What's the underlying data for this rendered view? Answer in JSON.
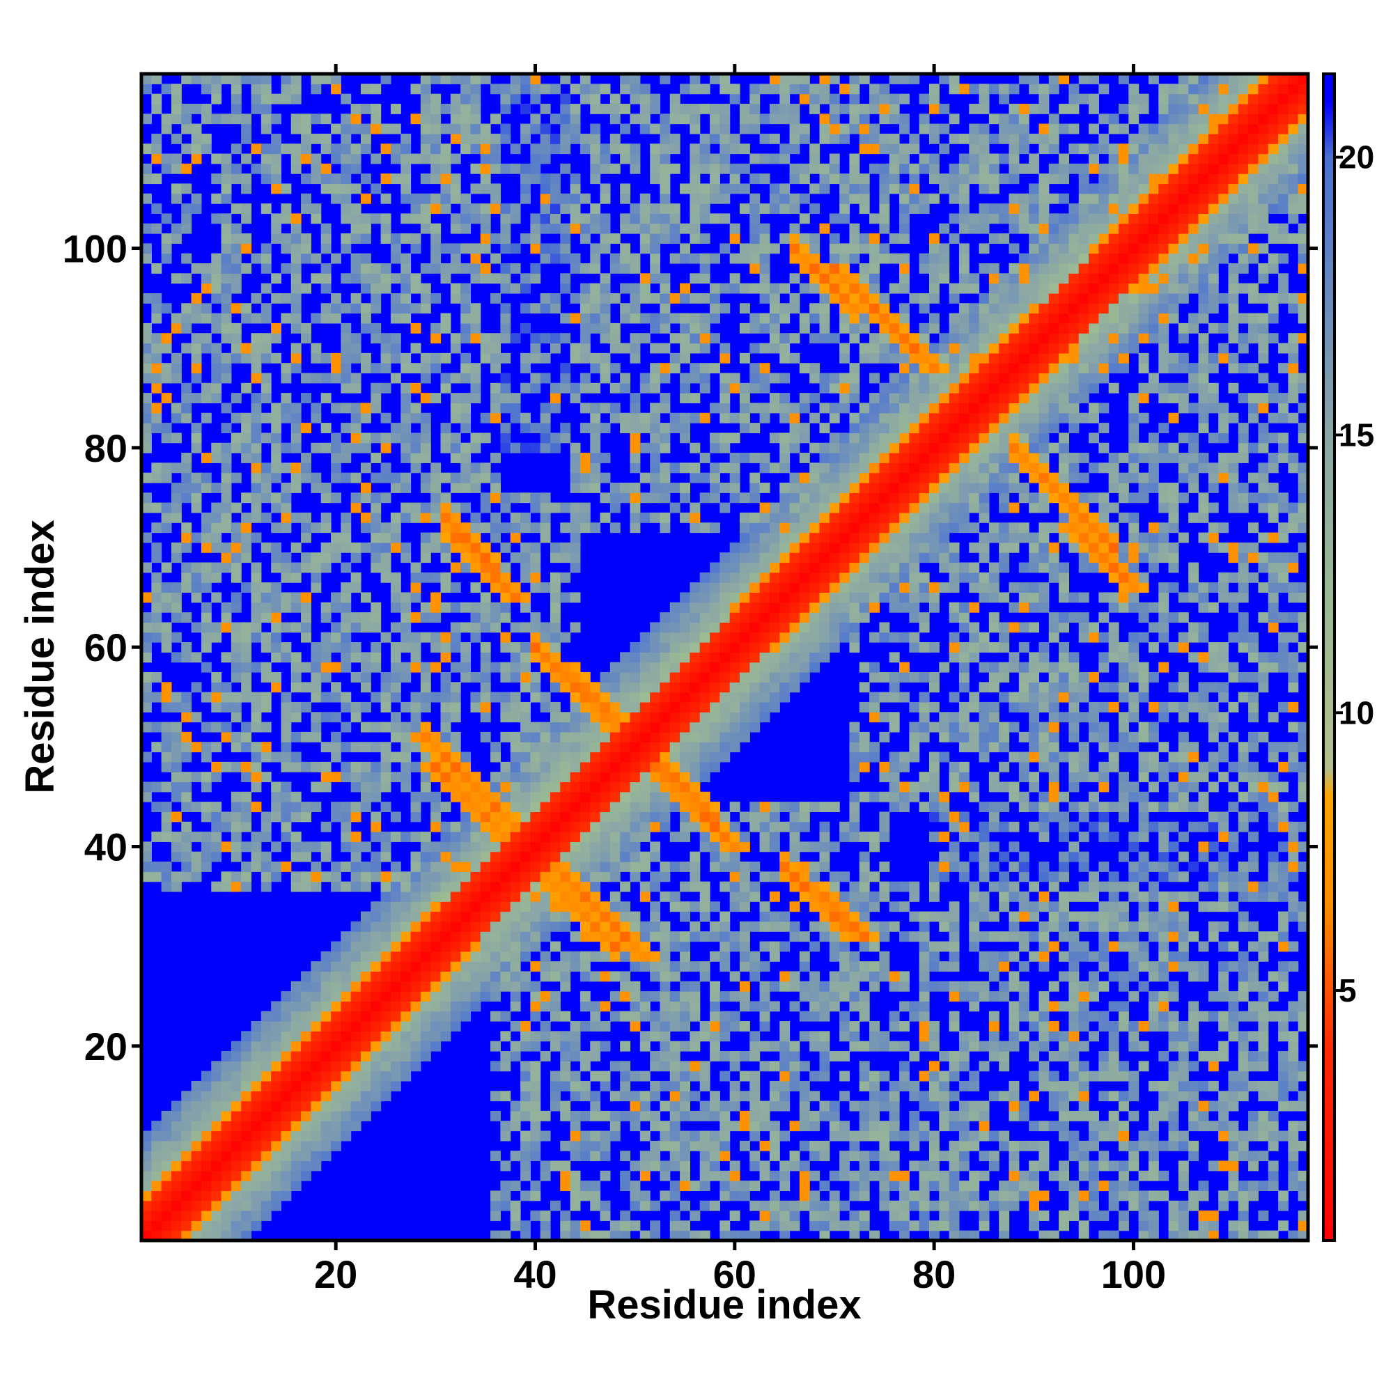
{
  "chart_data": {
    "type": "heatmap",
    "title": "",
    "xlabel": "Residue index",
    "ylabel": "Residue index",
    "n_residues": 117,
    "xlim": [
      1,
      117
    ],
    "ylim": [
      1,
      117
    ],
    "x_ticks": [
      20,
      40,
      60,
      80,
      100
    ],
    "y_ticks": [
      20,
      40,
      60,
      80,
      100
    ],
    "colorbar": {
      "range": [
        0.5,
        21.5
      ],
      "ticks": [
        5,
        10,
        15,
        20
      ],
      "tick_labels": [
        "5",
        "10",
        "15",
        "20"
      ],
      "gradient": [
        {
          "v": 0.5,
          "color": "#ff0000"
        },
        {
          "v": 4.0,
          "color": "#ff2a00"
        },
        {
          "v": 6.5,
          "color": "#ff8c00"
        },
        {
          "v": 8.5,
          "color": "#ffa500"
        },
        {
          "v": 9.0,
          "color": "#b4bf8c"
        },
        {
          "v": 12.0,
          "color": "#9aba94"
        },
        {
          "v": 15.0,
          "color": "#8aa6a6"
        },
        {
          "v": 18.5,
          "color": "#5a7fc9"
        },
        {
          "v": 20.0,
          "color": "#4a70d0"
        },
        {
          "v": 21.0,
          "color": "#0000ff"
        },
        {
          "v": 21.5,
          "color": "#0000ff"
        }
      ]
    },
    "background_value": 21.5,
    "structure": {
      "diagonal_band": {
        "width": 3,
        "min_value": 0.8
      },
      "helix_like_bands": [
        {
          "i_range": [
            1,
            22
          ],
          "offset": 4,
          "value": 6.5
        },
        {
          "i_range": [
            20,
            30
          ],
          "offset": 4,
          "value": 6.5
        },
        {
          "i_range": [
            60,
            78
          ],
          "offset": 4,
          "value": 6.5
        },
        {
          "i_range": [
            77,
            90
          ],
          "offset": 4,
          "value": 6.5
        },
        {
          "i_range": [
            96,
            117
          ],
          "offset": 4,
          "value": 6.5
        }
      ],
      "antiparallel_contacts": [
        {
          "i_range": [
            29,
            38
          ],
          "sum": 80,
          "value": 5.5
        },
        {
          "i_range": [
            40,
            48
          ],
          "sum": 78,
          "value": 5.5
        },
        {
          "i_range": [
            40,
            51
          ],
          "sum": 100,
          "value": 5.5
        },
        {
          "i_range": [
            31,
            36
          ],
          "sum": 104,
          "value": 5.5
        },
        {
          "i_range": [
            65,
            71
          ],
          "sum": 103,
          "value": 5.5
        },
        {
          "i_range": [
            66,
            72
          ],
          "sum": 166,
          "value": 5.5
        },
        {
          "i_range": [
            88,
            98
          ],
          "sum": 168,
          "value": 5.5
        },
        {
          "i_range": [
            53,
            58
          ],
          "sum": 101,
          "value": 5.5
        }
      ],
      "contact_regions": [
        {
          "x": [
            1,
            36
          ],
          "y": [
            44,
            117
          ],
          "value": 13
        },
        {
          "x": [
            36,
            75
          ],
          "y": [
            1,
            44
          ],
          "value": 13
        },
        {
          "x": [
            44,
            117
          ],
          "y": [
            72,
            117
          ],
          "value": 13
        },
        {
          "x": [
            72,
            117
          ],
          "y": [
            44,
            80
          ],
          "value": 14
        },
        {
          "x": [
            44,
            80
          ],
          "y": [
            1,
            36
          ],
          "value": 13
        },
        {
          "x": [
            80,
            117
          ],
          "y": [
            1,
            44
          ],
          "value": 15
        }
      ]
    }
  }
}
